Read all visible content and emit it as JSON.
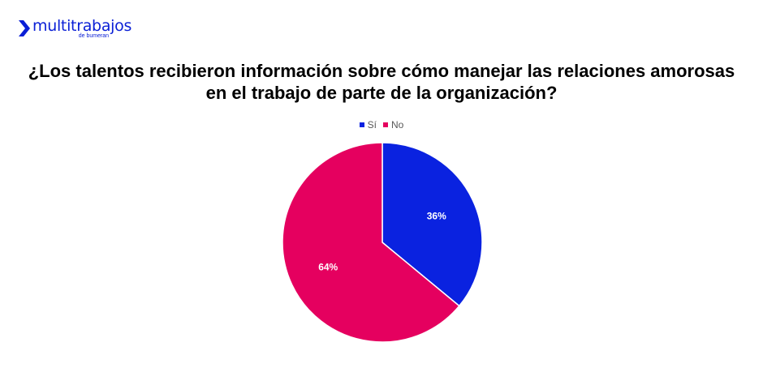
{
  "brand": {
    "name": "multitrabajos",
    "tagline": "de bumeran",
    "color": "#0a1fd6"
  },
  "chart_data": {
    "type": "pie",
    "title": "¿Los talentos recibieron información sobre cómo manejar las relaciones amorosas en el trabajo de parte de la organización?",
    "legend_position": "top",
    "categories": [
      "Sí",
      "No"
    ],
    "values": [
      36,
      64
    ],
    "labels": [
      "36%",
      "64%"
    ],
    "colors": [
      "#0a22e0",
      "#e5005f"
    ]
  }
}
